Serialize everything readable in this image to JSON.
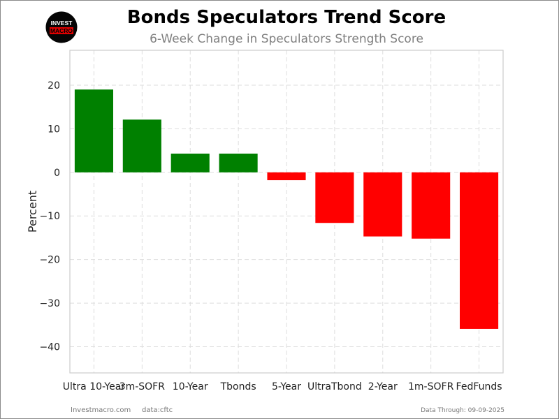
{
  "logo": {
    "line1": "INVEST",
    "line2": "MACRO"
  },
  "chart_data": {
    "type": "bar",
    "title": "Bonds Speculators Trend Score",
    "subtitle": "6-Week Change in Speculators Strength Score",
    "xlabel": "",
    "ylabel": "Percent",
    "categories": [
      "Ultra 10-Year",
      "3m-SOFR",
      "10-Year",
      "Tbonds",
      "5-Year",
      "UltraTbond",
      "2-Year",
      "1m-SOFR",
      "FedFunds"
    ],
    "values": [
      19.0,
      12.1,
      4.3,
      4.3,
      -1.8,
      -11.6,
      -14.7,
      -15.2,
      -35.9
    ],
    "ylim": [
      -46,
      28
    ],
    "yticks": [
      20,
      10,
      0,
      -10,
      -20,
      -30,
      -40
    ],
    "ytick_labels": [
      "20",
      "10",
      "0",
      "−10",
      "−20",
      "−30",
      "−40"
    ],
    "grid": true,
    "colors": {
      "positive": "#008000",
      "negative": "#ff0000",
      "grid": "#dddddd",
      "axes": "#cccccc"
    }
  },
  "footer": {
    "site": "Investmacro.com",
    "source": "data:cftc",
    "data_through": "Data Through: 09-09-2025"
  }
}
